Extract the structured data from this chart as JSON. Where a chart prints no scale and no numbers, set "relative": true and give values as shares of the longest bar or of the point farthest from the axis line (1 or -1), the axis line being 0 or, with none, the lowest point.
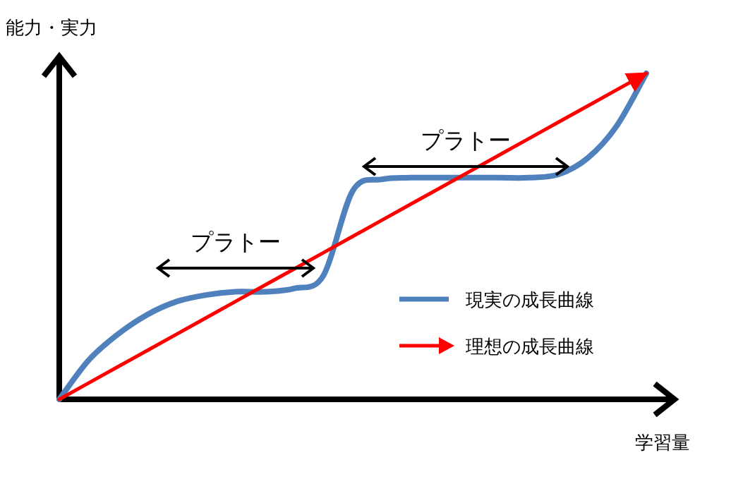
{
  "chart_data": {
    "type": "line",
    "relative": true,
    "xlabel": "学習量",
    "ylabel": "能力・実力",
    "legend": "right",
    "categories": [
      null,
      null,
      null,
      null,
      null,
      null,
      null,
      null,
      null,
      null,
      null,
      null,
      null,
      null,
      null,
      null,
      null,
      null,
      null,
      null,
      null
    ],
    "series": [
      {
        "name": "現実の成長曲線",
        "color": "#4f81bd",
        "values": [
          0,
          0.12,
          0.2,
          0.26,
          0.3,
          0.32,
          0.33,
          0.33,
          0.34,
          0.38,
          0.64,
          0.675,
          0.68,
          0.68,
          0.68,
          0.68,
          0.68,
          0.69,
          0.74,
          0.84,
          1
        ]
      },
      {
        "name": "理想の成長曲線",
        "color": "#ff0000",
        "values": [
          0,
          0.05,
          0.1,
          0.15,
          0.2,
          0.25,
          0.3,
          0.35,
          0.4,
          0.45,
          0.5,
          0.55,
          0.6,
          0.65,
          0.7,
          0.75,
          0.8,
          0.85,
          0.9,
          0.95,
          1
        ]
      }
    ],
    "annotations": [
      "プラトー",
      "プラトー"
    ]
  }
}
